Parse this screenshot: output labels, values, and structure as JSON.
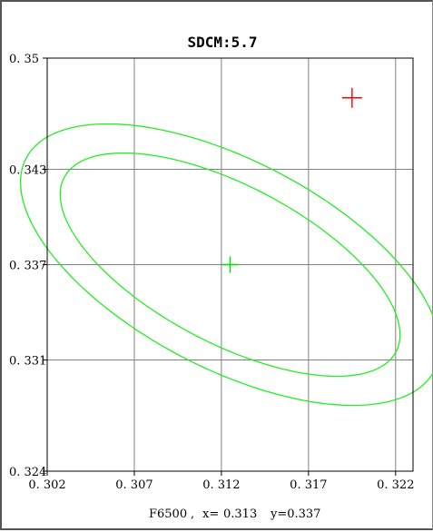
{
  "chart_data": {
    "type": "scatter",
    "title": "SDCM:5.7",
    "footer": {
      "name": "F6500",
      "x_label": "x=",
      "x_value": "0.313",
      "y_label": "y=0.337"
    },
    "xlim": [
      0.302,
      0.323
    ],
    "ylim": [
      0.324,
      0.35
    ],
    "x_ticks": [
      0.302,
      0.307,
      0.312,
      0.317,
      0.322
    ],
    "x_tick_labels": [
      "0. 302",
      "0. 307",
      "0. 312",
      "0. 317",
      "0. 322"
    ],
    "y_ticks": [
      0.35,
      0.343,
      0.337,
      0.331,
      0.324
    ],
    "y_tick_labels": [
      "0. 35",
      "0. 343",
      "0. 337",
      "0. 331",
      "0. 324"
    ],
    "grid": true,
    "center_marker": {
      "x": 0.3125,
      "y": 0.337,
      "color": "#00dd00"
    },
    "sample_marker": {
      "x": 0.3195,
      "y": 0.3475,
      "color": "#ff0000"
    },
    "ellipses": [
      {
        "cx": 0.3125,
        "cy": 0.337,
        "rx": 0.00485,
        "ry": 0.011,
        "angle_deg": 59,
        "color": "#22ee22"
      },
      {
        "cx": 0.3125,
        "cy": 0.337,
        "rx": 0.0064,
        "ry": 0.0135,
        "angle_deg": 59,
        "color": "#22ee22"
      }
    ],
    "colors": {
      "grid": "#808080",
      "axis": "#000000"
    }
  }
}
